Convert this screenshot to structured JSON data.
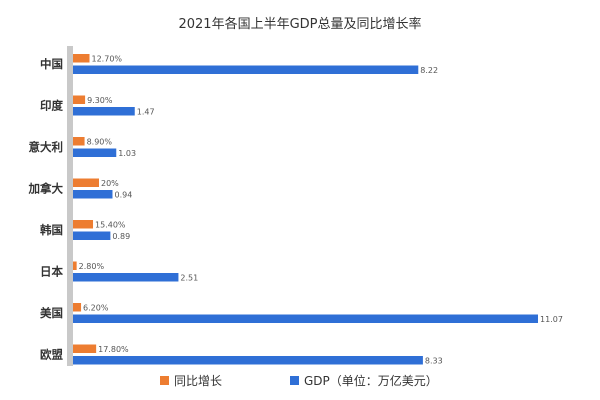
{
  "chart_data": {
    "type": "bar",
    "orientation": "horizontal",
    "title": "2021年各国上半年GDP总量及同比增长率",
    "categories": [
      "中国",
      "印度",
      "意大利",
      "加拿大",
      "韩国",
      "日本",
      "美国",
      "欧盟"
    ],
    "series": [
      {
        "name": "同比增长",
        "color": "#ed7d31",
        "values": [
          12.7,
          9.3,
          8.9,
          20,
          15.4,
          2.8,
          6.2,
          17.8
        ],
        "labels": [
          "12.70%",
          "9.30%",
          "8.90%",
          "20%",
          "15.40%",
          "2.80%",
          "6.20%",
          "17.80%"
        ]
      },
      {
        "name": "GDP（单位：万亿美元）",
        "color": "#2f6fd6",
        "values": [
          8.22,
          1.47,
          1.03,
          0.94,
          0.89,
          2.51,
          11.07,
          8.33
        ],
        "labels": [
          "8.22",
          "1.47",
          "1.03",
          "0.94",
          "0.89",
          "2.51",
          "11.07",
          "8.33"
        ]
      }
    ],
    "legend_position": "bottom",
    "grid": false,
    "axis_color": "#c9c9c9"
  }
}
